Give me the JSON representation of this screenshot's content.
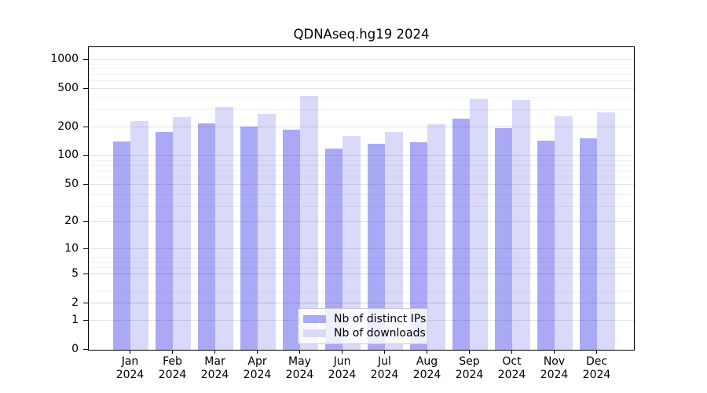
{
  "chart_data": {
    "type": "bar",
    "title": "QDNAseq.hg19 2024",
    "categories": [
      "Jan",
      "Feb",
      "Mar",
      "Apr",
      "May",
      "Jun",
      "Jul",
      "Aug",
      "Sep",
      "Oct",
      "Nov",
      "Dec"
    ],
    "x_year": "2024",
    "series": [
      {
        "name": "Nb of distinct IPs",
        "color": "#a9a9f6",
        "values": [
          139,
          173,
          216,
          199,
          184,
          117,
          132,
          136,
          240,
          190,
          141,
          149
        ]
      },
      {
        "name": "Nb of downloads",
        "color": "#d9d9f9",
        "values": [
          228,
          251,
          320,
          269,
          416,
          158,
          175,
          209,
          384,
          375,
          252,
          277
        ]
      }
    ],
    "yscale": "log1p",
    "ylim": [
      0,
      1325
    ],
    "yticks": [
      0,
      1,
      2,
      5,
      10,
      20,
      50,
      100,
      200,
      500,
      1000
    ],
    "minor_gridlines": [
      3,
      4,
      6,
      7,
      8,
      9,
      30,
      40,
      60,
      70,
      80,
      90,
      300,
      400,
      600,
      700,
      800,
      900
    ],
    "grid": true,
    "legend_position": "lower center inside",
    "axis_color": "#000000",
    "background": "#ffffff"
  }
}
